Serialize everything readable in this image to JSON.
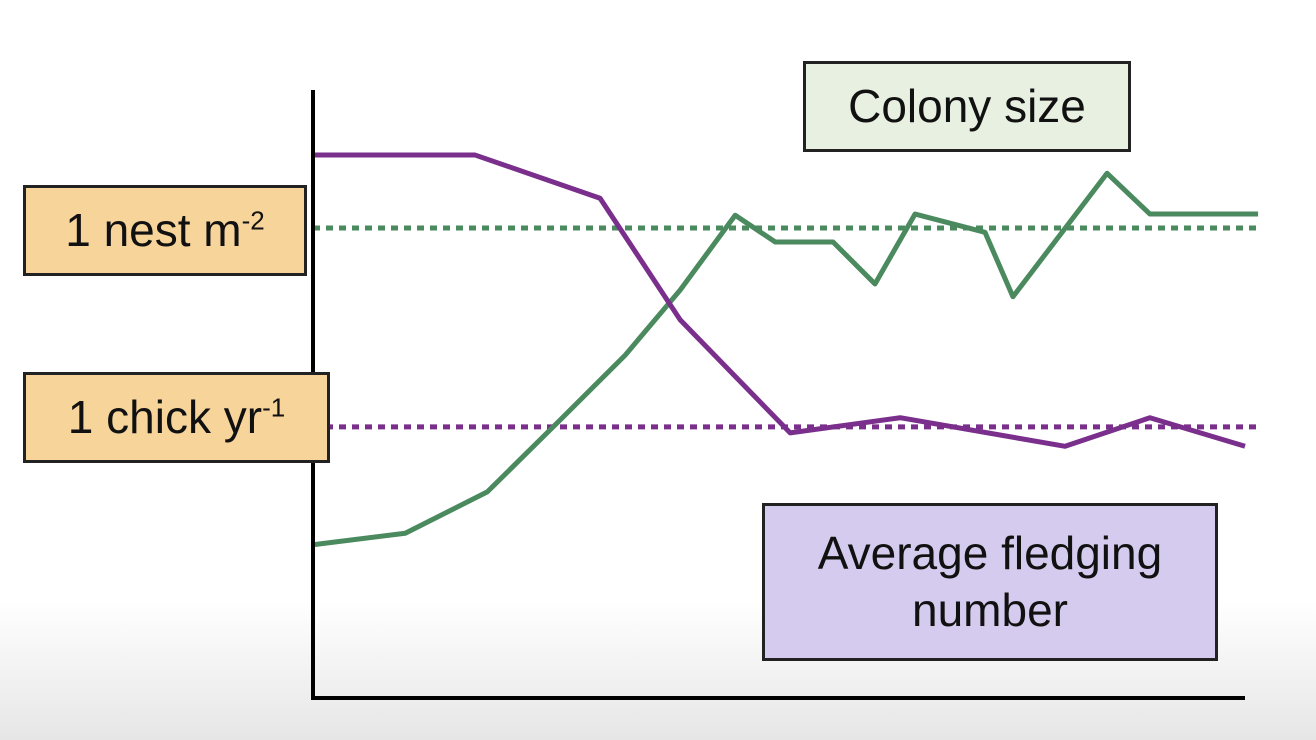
{
  "chart_data": {
    "type": "line",
    "title": "",
    "xlabel": "",
    "ylabel": "",
    "xlim": [
      0,
      100
    ],
    "ylim": [
      0,
      100
    ],
    "grid": false,
    "series": [
      {
        "name": "Colony size",
        "color": "#4a8a5e",
        "x": [
          0,
          9.9,
          18.7,
          26.5,
          33.5,
          39.4,
          45.3,
          49.6,
          55.8,
          60.3,
          64.6,
          72.1,
          75.1,
          85.2,
          89.8,
          101.4
        ],
        "y": [
          25.2,
          27.1,
          33.9,
          45.7,
          56.4,
          67.1,
          79.4,
          75.0,
          75.0,
          68.1,
          79.6,
          76.6,
          66.0,
          86.3,
          79.6,
          79.6
        ]
      },
      {
        "name": "Average fledging number",
        "color": "#7a2f8c",
        "x": [
          0,
          17.4,
          30.8,
          39.4,
          51.2,
          63.0,
          80.7,
          89.8,
          100
        ],
        "y": [
          89.3,
          89.3,
          82.2,
          62.2,
          43.6,
          46.1,
          41.4,
          46.1,
          41.4
        ]
      }
    ],
    "reference_lines": [
      {
        "label_main": "1 nest m",
        "label_sup": "-2",
        "y": 77.3,
        "color": "#4a8a5e"
      },
      {
        "label_main": "1 chick yr",
        "label_sup": "-1",
        "y": 44.6,
        "color": "#7a2f8c"
      }
    ],
    "legend": {
      "colony": "Colony size",
      "fledging_line1": "Average fledging",
      "fledging_line2": "number"
    }
  }
}
